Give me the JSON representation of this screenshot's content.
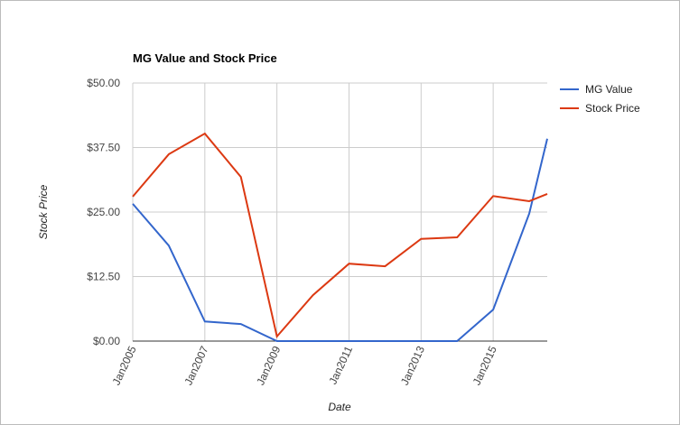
{
  "chart_data": {
    "type": "line",
    "title": "MG Value and Stock Price",
    "x_label": "Date",
    "y_label": "Stock Price",
    "x": [
      2005,
      2006,
      2007,
      2008,
      2009,
      2010,
      2011,
      2012,
      2013,
      2014,
      2015,
      2016,
      2016.5
    ],
    "series": [
      {
        "name": "MG Value",
        "color": "#3366cc",
        "values": [
          26.6,
          18.5,
          3.8,
          3.3,
          0,
          0,
          0,
          0,
          0,
          0,
          6.1,
          24.7,
          39.2
        ]
      },
      {
        "name": "Stock Price",
        "color": "#dc3912",
        "values": [
          28.0,
          36.2,
          40.2,
          31.8,
          0.9,
          8.9,
          15.0,
          14.5,
          19.8,
          20.1,
          28.1,
          27.1,
          28.5
        ]
      }
    ],
    "xlim": [
      2005,
      2016.5
    ],
    "xticks": [
      {
        "value": 2005,
        "label": "Jan2005"
      },
      {
        "value": 2007,
        "label": "Jan2007"
      },
      {
        "value": 2009,
        "label": "Jan2009"
      },
      {
        "value": 2011,
        "label": "Jan2011"
      },
      {
        "value": 2013,
        "label": "Jan2013"
      },
      {
        "value": 2015,
        "label": "Jan2015"
      }
    ],
    "ylim": [
      0,
      50
    ],
    "yticks": [
      {
        "value": 0,
        "label": "$0.00"
      },
      {
        "value": 12.5,
        "label": "$12.50"
      },
      {
        "value": 25,
        "label": "$25.00"
      },
      {
        "value": 37.5,
        "label": "$37.50"
      },
      {
        "value": 50,
        "label": "$50.00"
      }
    ],
    "grid": true,
    "legend": "right"
  }
}
